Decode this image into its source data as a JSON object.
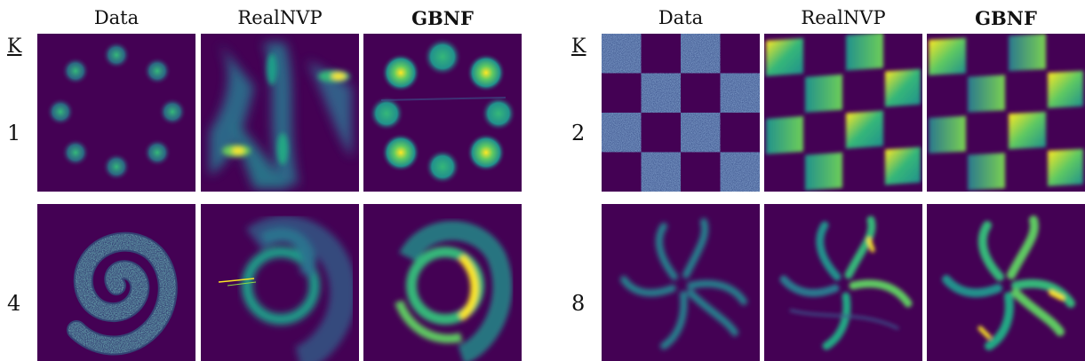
{
  "figure": {
    "left_group": {
      "k_label": "K",
      "columns": [
        "Data",
        "RealNVP",
        "GBNF"
      ],
      "rows": [
        "1",
        "4"
      ]
    },
    "right_group": {
      "k_label": "K",
      "columns": [
        "Data",
        "RealNVP",
        "GBNF"
      ],
      "rows": [
        "2",
        "8"
      ]
    }
  },
  "colors": {
    "background": "#440154",
    "mid": "#21918c",
    "bright": "#fde725"
  }
}
